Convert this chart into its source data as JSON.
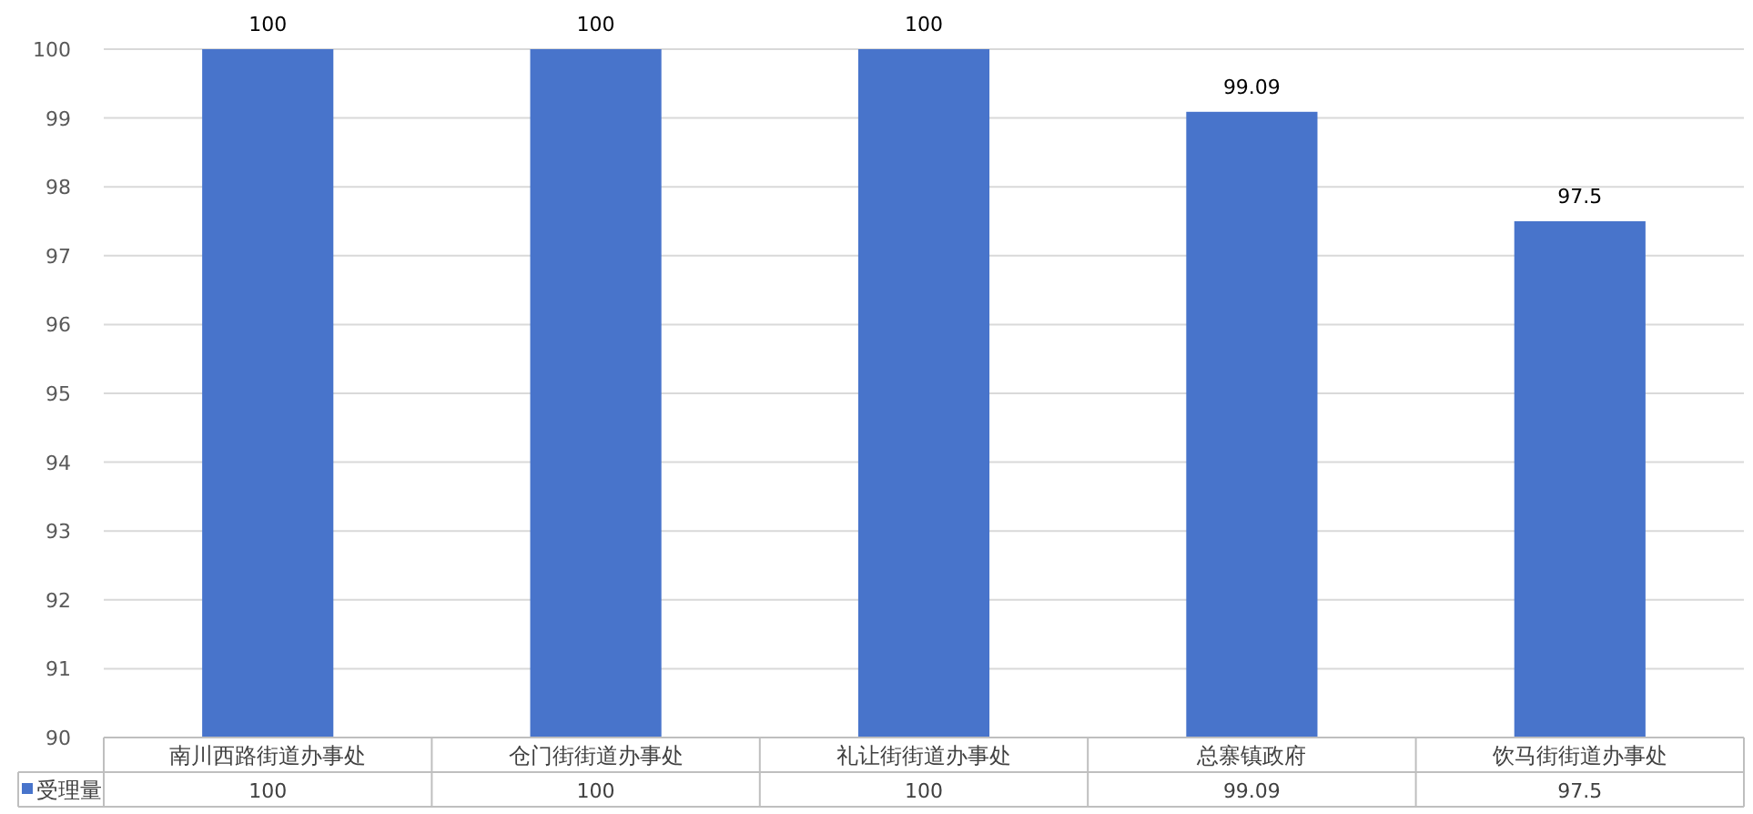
{
  "chart_data": {
    "type": "bar",
    "categories": [
      "南川西路街道办事处",
      "仓门街街道办事处",
      "礼让街街道办事处",
      "总寨镇政府",
      "饮马街街道办事处"
    ],
    "series": [
      {
        "name": "受理量",
        "color": "#4874cb",
        "values": [
          100,
          100,
          100,
          99.09,
          97.5
        ],
        "value_labels": [
          "100",
          "100",
          "100",
          "99.09",
          "97.5"
        ]
      }
    ],
    "ylim": [
      90,
      100
    ],
    "yticks": [
      90,
      91,
      92,
      93,
      94,
      95,
      96,
      97,
      98,
      99,
      100
    ],
    "annotations": [
      "100",
      "100",
      "100",
      "99.09",
      "97.5"
    ],
    "grid": "y",
    "legend": "bottom left"
  }
}
